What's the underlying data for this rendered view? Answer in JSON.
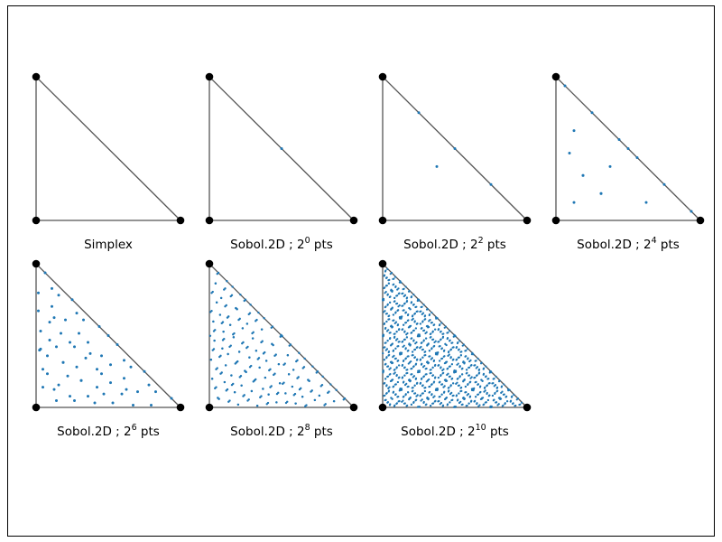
{
  "chart_data": [
    {
      "type": "scatter",
      "title_main": "Simplex",
      "title_exp": "",
      "title_suffix": "",
      "n_points": 0
    },
    {
      "type": "scatter",
      "title_main": "Sobol.2D ; 2",
      "title_exp": "0",
      "title_suffix": " pts",
      "n_points": 1
    },
    {
      "type": "scatter",
      "title_main": "Sobol.2D ; 2",
      "title_exp": "2",
      "title_suffix": " pts",
      "n_points": 4
    },
    {
      "type": "scatter",
      "title_main": "Sobol.2D ; 2",
      "title_exp": "4",
      "title_suffix": " pts",
      "n_points": 16
    },
    {
      "type": "scatter",
      "title_main": "Sobol.2D ; 2",
      "title_exp": "6",
      "title_suffix": " pts",
      "n_points": 64
    },
    {
      "type": "scatter",
      "title_main": "Sobol.2D ; 2",
      "title_exp": "8",
      "title_suffix": " pts",
      "n_points": 256
    },
    {
      "type": "scatter",
      "title_main": "Sobol.2D ; 2",
      "title_exp": "10",
      "title_suffix": " pts",
      "n_points": 1024
    }
  ],
  "colors": {
    "points": "#1f77b4",
    "triangle": "#555555",
    "vertex": "#000000",
    "background": "#ffffff"
  }
}
